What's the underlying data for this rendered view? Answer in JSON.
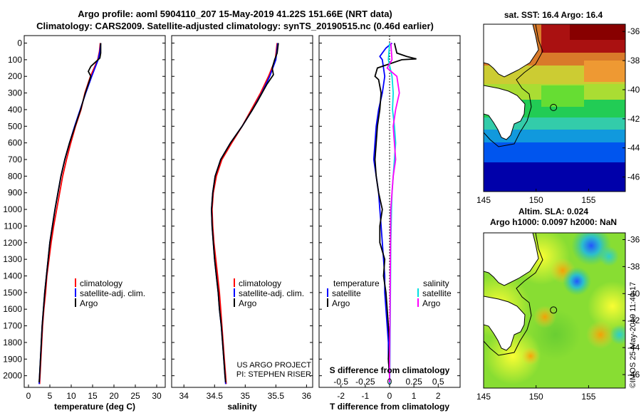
{
  "header": {
    "title_line1": "Argo profile: aoml 5904110_207 15-May-2019 41.22S 151.66E (NRT data)",
    "title_line2": "Climatology: CARS2009. Satellite-adjusted climatology: synTS_20190515.nc (0.46d earlier)"
  },
  "colors": {
    "climatology": "#ff0000",
    "satellite": "#0000ff",
    "argo": "#000000",
    "sat_salinity": "#00e0e0",
    "argo_salinity": "#ff00ff"
  },
  "depth_axis": {
    "ticks": [
      0,
      100,
      200,
      300,
      400,
      500,
      600,
      700,
      800,
      900,
      1000,
      1100,
      1200,
      1300,
      1400,
      1500,
      1600,
      1700,
      1800,
      1900,
      2000
    ],
    "range": [
      -45,
      2070
    ]
  },
  "legend": {
    "climatology": "climatology",
    "satellite_clim": "satellite-adj. clim.",
    "argo": "Argo",
    "temperature": "temperature",
    "salinity": "salinity",
    "satellite": "satellite"
  },
  "credits": {
    "project": "US ARGO PROJECT",
    "pi": "PI: STEPHEN RISER"
  },
  "chart_data": [
    {
      "type": "line",
      "name": "temperature-panel",
      "xlabel": "temperature (deg C)",
      "ylabel": "",
      "xlim": [
        -1,
        32
      ],
      "ylim": [
        2070,
        -45
      ],
      "xticks": [
        0,
        5,
        10,
        15,
        20,
        25,
        30
      ],
      "series": [
        {
          "name": "climatology",
          "points": [
            [
              16.8,
              0
            ],
            [
              16.6,
              50
            ],
            [
              16.2,
              100
            ],
            [
              14.5,
              200
            ],
            [
              13.2,
              300
            ],
            [
              12.3,
              400
            ],
            [
              11.0,
              500
            ],
            [
              9.9,
              600
            ],
            [
              8.9,
              700
            ],
            [
              8.0,
              800
            ],
            [
              7.3,
              900
            ],
            [
              6.6,
              1000
            ],
            [
              5.9,
              1100
            ],
            [
              5.3,
              1200
            ],
            [
              4.8,
              1300
            ],
            [
              4.3,
              1400
            ],
            [
              4.0,
              1500
            ],
            [
              3.6,
              1600
            ],
            [
              3.3,
              1700
            ],
            [
              3.1,
              1800
            ],
            [
              2.9,
              1900
            ],
            [
              2.7,
              2000
            ],
            [
              2.6,
              2050
            ]
          ]
        },
        {
          "name": "satellite-adj. clim.",
          "points": [
            [
              16.9,
              0
            ],
            [
              16.7,
              50
            ],
            [
              16.3,
              100
            ],
            [
              14.8,
              200
            ],
            [
              13.4,
              300
            ],
            [
              12.1,
              400
            ],
            [
              10.8,
              500
            ],
            [
              9.6,
              600
            ],
            [
              8.5,
              700
            ],
            [
              7.6,
              800
            ],
            [
              6.9,
              900
            ],
            [
              6.2,
              1000
            ],
            [
              5.6,
              1100
            ],
            [
              5.0,
              1200
            ],
            [
              4.6,
              1300
            ],
            [
              4.2,
              1400
            ],
            [
              3.8,
              1500
            ],
            [
              3.5,
              1600
            ],
            [
              3.2,
              1700
            ],
            [
              3.0,
              1800
            ],
            [
              2.8,
              1900
            ],
            [
              2.6,
              2000
            ],
            [
              2.5,
              2050
            ]
          ]
        },
        {
          "name": "Argo",
          "points": [
            [
              16.9,
              0
            ],
            [
              16.9,
              60
            ],
            [
              16.7,
              90
            ],
            [
              14.6,
              140
            ],
            [
              14.0,
              170
            ],
            [
              14.6,
              200
            ],
            [
              13.3,
              300
            ],
            [
              12.2,
              400
            ],
            [
              10.9,
              500
            ],
            [
              9.6,
              600
            ],
            [
              8.5,
              700
            ],
            [
              7.6,
              800
            ],
            [
              6.9,
              900
            ],
            [
              6.2,
              1000
            ],
            [
              5.6,
              1100
            ],
            [
              5.0,
              1200
            ],
            [
              4.6,
              1300
            ],
            [
              4.2,
              1400
            ],
            [
              3.8,
              1500
            ],
            [
              3.5,
              1600
            ],
            [
              3.2,
              1700
            ],
            [
              3.0,
              1800
            ],
            [
              2.8,
              1900
            ],
            [
              2.6,
              2000
            ],
            [
              2.5,
              2040
            ]
          ]
        }
      ]
    },
    {
      "type": "line",
      "name": "salinity-panel",
      "xlabel": "salinity",
      "ylabel": "",
      "xlim": [
        33.8,
        36.1
      ],
      "ylim": [
        2070,
        -45
      ],
      "xticks": [
        34,
        34.5,
        35,
        35.5,
        36
      ],
      "series": [
        {
          "name": "climatology",
          "points": [
            [
              35.52,
              0
            ],
            [
              35.49,
              100
            ],
            [
              35.38,
              200
            ],
            [
              35.25,
              300
            ],
            [
              35.1,
              400
            ],
            [
              34.95,
              500
            ],
            [
              34.78,
              600
            ],
            [
              34.62,
              700
            ],
            [
              34.53,
              800
            ],
            [
              34.48,
              900
            ],
            [
              34.46,
              1000
            ],
            [
              34.47,
              1100
            ],
            [
              34.49,
              1200
            ],
            [
              34.52,
              1300
            ],
            [
              34.55,
              1400
            ],
            [
              34.58,
              1500
            ],
            [
              34.6,
              1600
            ],
            [
              34.62,
              1700
            ],
            [
              34.64,
              1800
            ],
            [
              34.66,
              1900
            ],
            [
              34.68,
              2000
            ],
            [
              34.69,
              2050
            ]
          ]
        },
        {
          "name": "satellite-adj. clim.",
          "points": [
            [
              35.53,
              0
            ],
            [
              35.5,
              100
            ],
            [
              35.4,
              200
            ],
            [
              35.27,
              300
            ],
            [
              35.12,
              400
            ],
            [
              34.95,
              500
            ],
            [
              34.76,
              600
            ],
            [
              34.6,
              700
            ],
            [
              34.51,
              800
            ],
            [
              34.47,
              900
            ],
            [
              34.45,
              1000
            ],
            [
              34.46,
              1100
            ],
            [
              34.48,
              1200
            ],
            [
              34.5,
              1300
            ],
            [
              34.53,
              1400
            ],
            [
              34.56,
              1500
            ],
            [
              34.58,
              1600
            ],
            [
              34.61,
              1700
            ],
            [
              34.63,
              1800
            ],
            [
              34.65,
              1900
            ],
            [
              34.67,
              2000
            ],
            [
              34.68,
              2050
            ]
          ]
        },
        {
          "name": "Argo",
          "points": [
            [
              35.54,
              0
            ],
            [
              35.52,
              60
            ],
            [
              35.48,
              100
            ],
            [
              35.44,
              150
            ],
            [
              35.46,
              190
            ],
            [
              35.35,
              250
            ],
            [
              35.2,
              350
            ],
            [
              35.12,
              400
            ],
            [
              34.95,
              500
            ],
            [
              34.76,
              600
            ],
            [
              34.6,
              700
            ],
            [
              34.51,
              800
            ],
            [
              34.47,
              900
            ],
            [
              34.45,
              1000
            ],
            [
              34.46,
              1100
            ],
            [
              34.48,
              1200
            ],
            [
              34.5,
              1300
            ],
            [
              34.53,
              1400
            ],
            [
              34.56,
              1500
            ],
            [
              34.58,
              1600
            ],
            [
              34.61,
              1700
            ],
            [
              34.63,
              1800
            ],
            [
              34.65,
              1900
            ],
            [
              34.67,
              2000
            ],
            [
              34.68,
              2040
            ]
          ]
        }
      ]
    },
    {
      "type": "line",
      "name": "difference-panel",
      "xlabel": "T difference from climatology",
      "xlabel_top": "S difference from climatology",
      "xlim": [
        -2.9,
        2.9
      ],
      "ylim": [
        2070,
        -45
      ],
      "xticks": [
        -2,
        -1,
        0,
        1,
        2
      ],
      "xticks_top": [
        "-0.5",
        "-0.25",
        "0",
        "0.25",
        "0.5"
      ],
      "series": [
        {
          "name": "temperature satellite",
          "points": [
            [
              0.1,
              0
            ],
            [
              -0.15,
              30
            ],
            [
              -0.4,
              80
            ],
            [
              -0.3,
              100
            ],
            [
              -0.2,
              200
            ],
            [
              -0.3,
              300
            ],
            [
              -0.45,
              400
            ],
            [
              -0.55,
              500
            ],
            [
              -0.6,
              600
            ],
            [
              -0.65,
              700
            ],
            [
              -0.55,
              800
            ],
            [
              -0.45,
              900
            ],
            [
              -0.4,
              1000
            ],
            [
              -0.35,
              1100
            ],
            [
              -0.3,
              1200
            ],
            [
              -0.25,
              1300
            ],
            [
              -0.2,
              1400
            ],
            [
              -0.2,
              1500
            ],
            [
              -0.15,
              1600
            ],
            [
              -0.1,
              1700
            ],
            [
              -0.05,
              1800
            ],
            [
              -0.05,
              1900
            ],
            [
              0,
              2000
            ],
            [
              0,
              2050
            ]
          ]
        },
        {
          "name": "temperature Argo",
          "points": [
            [
              0.2,
              0
            ],
            [
              0.3,
              60
            ],
            [
              0.7,
              80
            ],
            [
              1.1,
              95
            ],
            [
              0.5,
              100
            ],
            [
              -0.5,
              150
            ],
            [
              -0.6,
              200
            ],
            [
              -0.45,
              220
            ],
            [
              -0.35,
              300
            ],
            [
              -0.4,
              400
            ],
            [
              -0.5,
              500
            ],
            [
              -0.55,
              600
            ],
            [
              -0.6,
              700
            ],
            [
              -0.55,
              800
            ],
            [
              -0.45,
              900
            ],
            [
              -0.3,
              1000
            ],
            [
              -0.4,
              1100
            ],
            [
              -0.4,
              1200
            ],
            [
              -0.2,
              1300
            ],
            [
              -0.25,
              1400
            ],
            [
              -0.15,
              1500
            ],
            [
              -0.1,
              1600
            ],
            [
              -0.05,
              1700
            ],
            [
              0,
              1800
            ],
            [
              -0.05,
              1900
            ],
            [
              0,
              2000
            ],
            [
              0,
              2040
            ]
          ]
        },
        {
          "name": "salinity satellite",
          "points": [
            [
              0,
              0
            ],
            [
              -0.05,
              100
            ],
            [
              0.1,
              200
            ],
            [
              0.15,
              300
            ],
            [
              0.12,
              400
            ],
            [
              0.2,
              500
            ],
            [
              0.25,
              600
            ],
            [
              0.2,
              700
            ],
            [
              0.15,
              800
            ],
            [
              0.1,
              900
            ],
            [
              0.08,
              1000
            ],
            [
              0.05,
              1200
            ],
            [
              0.04,
              1400
            ],
            [
              0.03,
              1600
            ],
            [
              0.02,
              1800
            ],
            [
              0.01,
              2000
            ],
            [
              0.01,
              2050
            ]
          ]
        },
        {
          "name": "salinity Argo",
          "points": [
            [
              0.05,
              0
            ],
            [
              0.1,
              100
            ],
            [
              -0.1,
              150
            ],
            [
              0.3,
              200
            ],
            [
              0.4,
              300
            ],
            [
              0.25,
              400
            ],
            [
              0.15,
              500
            ],
            [
              0.2,
              600
            ],
            [
              0.25,
              700
            ],
            [
              0.15,
              800
            ],
            [
              0.1,
              900
            ],
            [
              0.05,
              1000
            ],
            [
              0.04,
              1200
            ],
            [
              0.03,
              1400
            ],
            [
              0.02,
              1600
            ],
            [
              0.01,
              1800
            ],
            [
              0,
              2000
            ],
            [
              0,
              2040
            ]
          ]
        }
      ]
    },
    {
      "type": "heatmap",
      "name": "sst-map",
      "title": "sat. SST: 16.4 Argo: 16.4",
      "xlim": [
        145,
        158.5
      ],
      "ylim": [
        -47,
        -35.5
      ],
      "xticks": [
        145,
        150,
        155
      ],
      "yticks": [
        -36,
        -38,
        -40,
        -42,
        -44,
        -46
      ],
      "marker": [
        151.66,
        -41.22
      ]
    },
    {
      "type": "heatmap",
      "name": "sla-map",
      "title_line1": "Altim. SLA: 0.024",
      "title_line2": "Argo h1000: 0.0097 h2000: NaN",
      "xlim": [
        145,
        158.5
      ],
      "ylim": [
        -47,
        -35.5
      ],
      "xticks": [
        145,
        150,
        155
      ],
      "yticks": [
        -36,
        -38,
        -40,
        -42,
        -44,
        -46
      ],
      "marker": [
        151.66,
        -41.22
      ]
    }
  ],
  "footer": {
    "stamp": "©IMOS 25-May-2019 11:40:17"
  }
}
